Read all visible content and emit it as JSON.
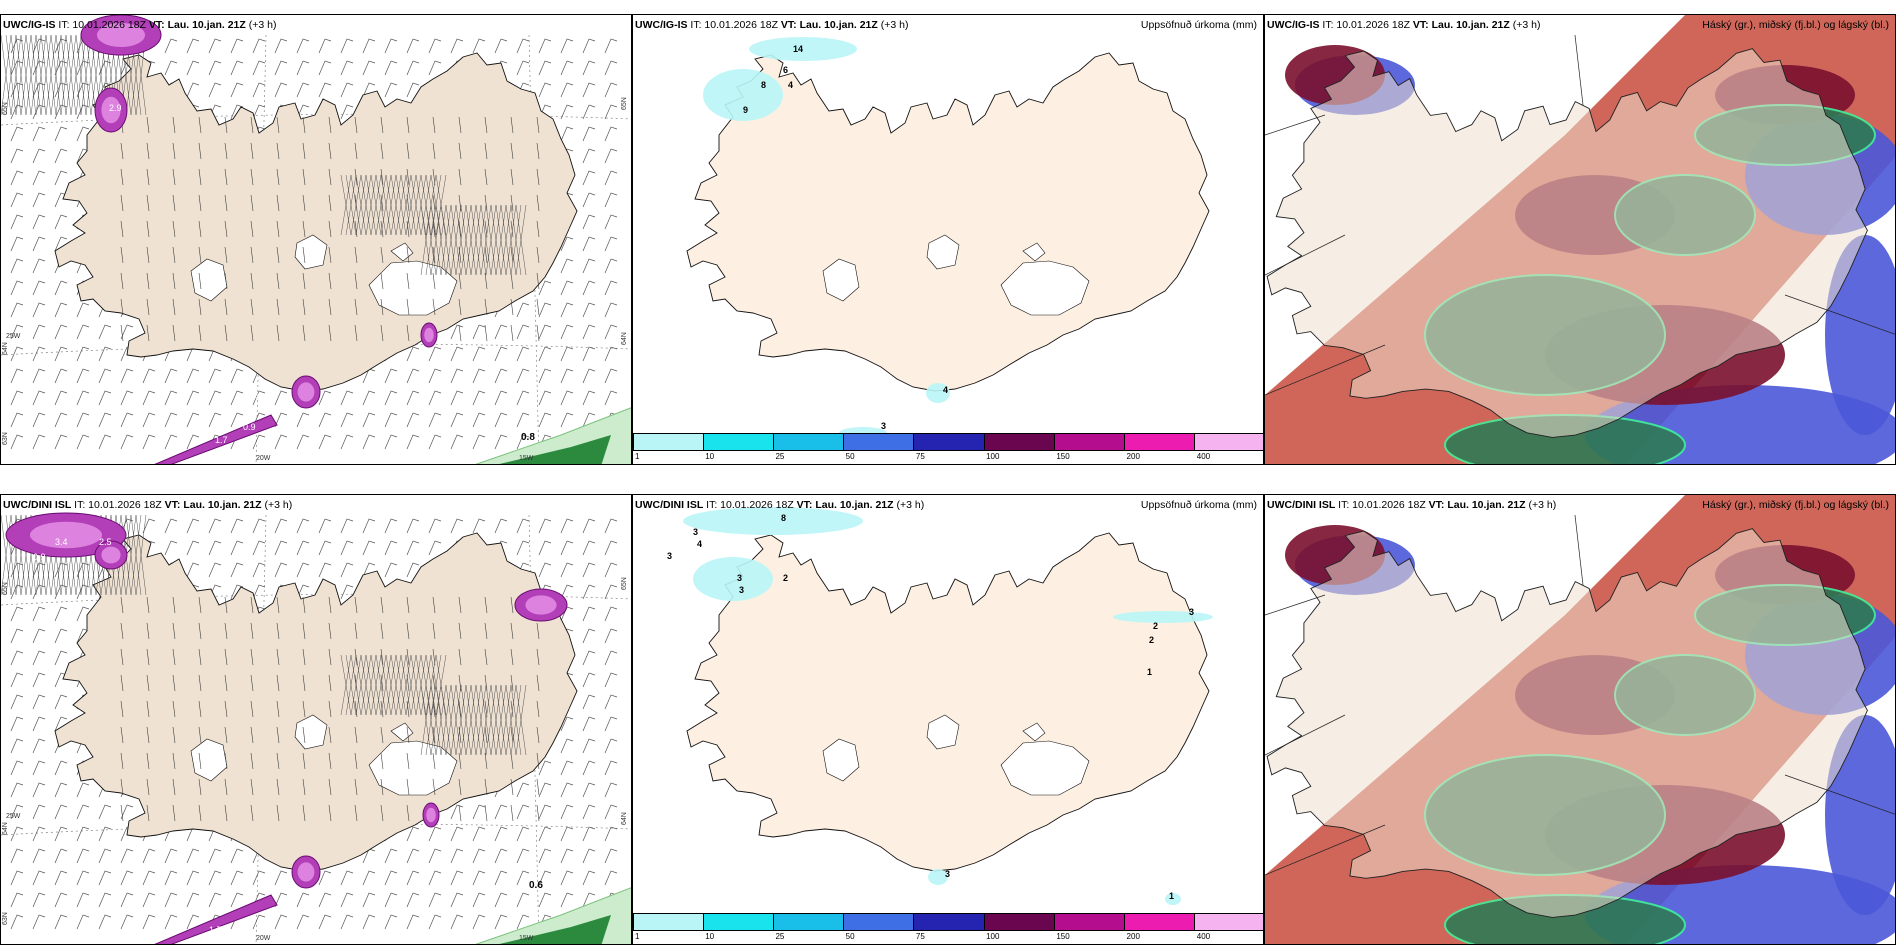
{
  "rows": [
    {
      "model": "UWC/IG-IS",
      "it": "IT: 10.01.2026 18Z",
      "vt_label": "VT:",
      "vt_value": "Lau. 10.jan. 21Z",
      "lead": "(+3 h)",
      "wind_panel": {
        "lat_labels": [
          "65N",
          "64N",
          "63N"
        ],
        "lon_labels": [
          "25W",
          "20W",
          "15W"
        ],
        "right_lat": [
          "65N",
          "64N"
        ],
        "value": "0.8",
        "small_values": [
          "2.9",
          "1.6",
          "0.9",
          "1.7"
        ]
      },
      "precip_panel": {
        "title": "Uppsöfnuð úrkoma (mm)",
        "labels": [
          "14",
          "6",
          "8",
          "9",
          "4",
          "4",
          "3"
        ]
      },
      "cloud_panel": {
        "title": "Háský (gr.), miðský (fj.bl.) og lágský (bl.)"
      }
    },
    {
      "model": "UWC/DINI ISL",
      "it": "IT: 10.01.2026 18Z",
      "vt_label": "VT:",
      "vt_value": "Lau. 10.jan. 21Z",
      "lead": "(+3 h)",
      "wind_panel": {
        "lat_labels": [
          "65N",
          "64N",
          "63N"
        ],
        "lon_labels": [
          "25W",
          "20W",
          "15W"
        ],
        "right_lat": [
          "65N",
          "64N"
        ],
        "value": "0.6",
        "small_values": [
          "3.4",
          "2.5",
          "0.9",
          "1.7"
        ]
      },
      "precip_panel": {
        "title": "Uppsöfnuð úrkoma (mm)",
        "labels": [
          "8",
          "3",
          "4",
          "3",
          "3",
          "3",
          "2",
          "3",
          "2",
          "2",
          "1",
          "1",
          "3"
        ]
      },
      "cloud_panel": {
        "title": "Háský (gr.), miðský (fj.bl.) og lágský (bl.)"
      }
    }
  ],
  "colorbar": {
    "ticks": [
      "1",
      "10",
      "25",
      "50",
      "75",
      "100",
      "150",
      "200",
      "400"
    ],
    "colors": [
      "#b9f5f7",
      "#19e3ec",
      "#19bfe8",
      "#3f6fe4",
      "#2424b0",
      "#6a0550",
      "#b40e8e",
      "#ec1cb0",
      "#f5b4f0"
    ]
  }
}
